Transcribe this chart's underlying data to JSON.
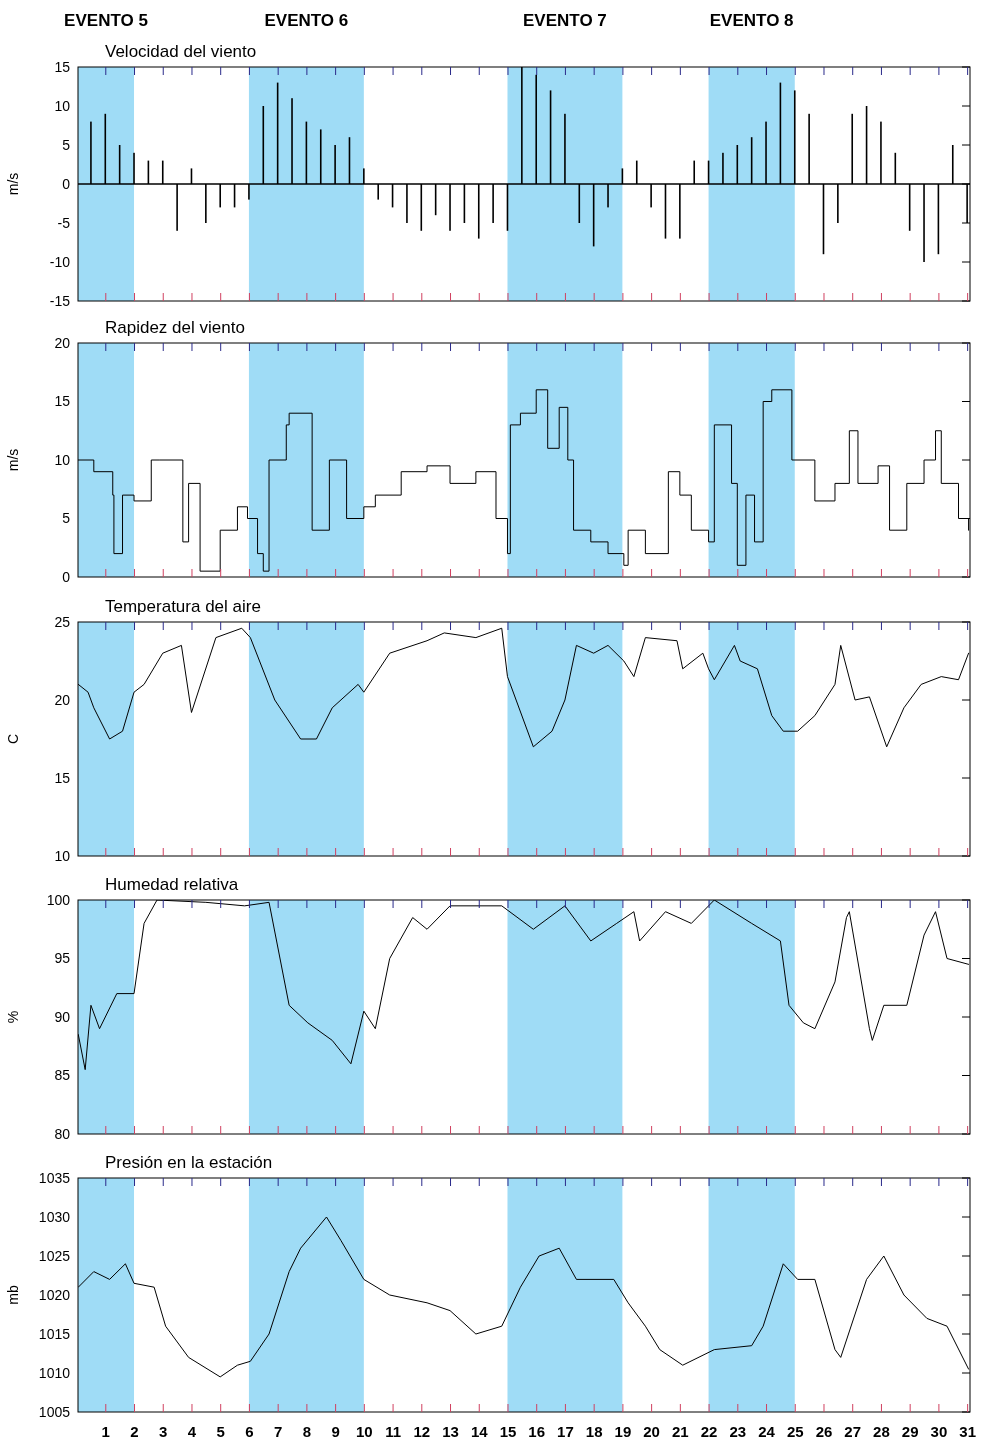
{
  "chart_data": [
    {
      "type": "bar",
      "title": "Velocidad del viento",
      "ylabel": "m/s",
      "xlim": [
        0.05,
        31.1
      ],
      "ylim": [
        -15,
        15
      ],
      "yticks": [
        -15,
        -10,
        -5,
        0,
        5,
        10,
        15
      ],
      "xticks": [
        1,
        2,
        3,
        4,
        5,
        6,
        7,
        8,
        9,
        10,
        11,
        12,
        13,
        14,
        15,
        16,
        17,
        18,
        19,
        20,
        21,
        22,
        23,
        24,
        25,
        26,
        27,
        28,
        29,
        30,
        31
      ],
      "tick_labels": "y",
      "grid": false,
      "bands": [
        {
          "axis": "x",
          "from": 0.05,
          "to": 2,
          "label": "EVENTO 5",
          "color": "#9fdcf6"
        },
        {
          "axis": "x",
          "from": 6,
          "to": 10,
          "label": "EVENTO 6",
          "color": "#9fdcf6"
        },
        {
          "axis": "x",
          "from": 15,
          "to": 19,
          "label": "EVENTO 7",
          "color": "#9fdcf6"
        },
        {
          "axis": "x",
          "from": 22,
          "to": 25,
          "label": "EVENTO 8",
          "color": "#9fdcf6"
        }
      ],
      "ref_lines": [
        {
          "axis": "y",
          "value": 0,
          "color": "#000000"
        }
      ],
      "x": [
        0.5,
        1,
        1.5,
        2,
        2.5,
        3,
        3.5,
        4,
        4.5,
        5,
        5.5,
        6,
        6.5,
        7,
        7.5,
        8,
        8.5,
        9,
        9.5,
        10,
        10.5,
        11,
        11.5,
        12,
        12.5,
        13,
        13.5,
        14,
        14.5,
        15,
        15.5,
        16,
        16.5,
        17,
        17.5,
        18,
        18.5,
        19,
        19.5,
        20,
        20.5,
        21,
        21.5,
        22,
        22.5,
        23,
        23.5,
        24,
        24.5,
        25,
        25.5,
        26,
        26.5,
        27,
        27.5,
        28,
        28.5,
        29,
        29.5,
        30,
        30.5,
        31
      ],
      "series": [
        {
          "color": "#000000",
          "values": [
            8,
            9,
            5,
            4,
            3,
            3,
            -6,
            2,
            -5,
            -3,
            -3,
            -2,
            10,
            13,
            11,
            8,
            7,
            5,
            6,
            2,
            -2,
            -3,
            -5,
            -6,
            -4,
            -6,
            -5,
            -7,
            -5,
            -6,
            15,
            14,
            12,
            9,
            -5,
            -8,
            -3,
            2,
            3,
            -3,
            -7,
            -7,
            3,
            3,
            4,
            5,
            6,
            8,
            13,
            12,
            9,
            -9,
            -5,
            9,
            10,
            8,
            4,
            -6,
            -10,
            -9,
            5,
            -5
          ]
        }
      ]
    },
    {
      "type": "step",
      "title": "Rapidez del viento",
      "ylabel": "m/s",
      "xlim": [
        0.05,
        31.1
      ],
      "ylim": [
        0,
        20
      ],
      "yticks": [
        0,
        5,
        10,
        15,
        20
      ],
      "xticks": [
        1,
        2,
        3,
        4,
        5,
        6,
        7,
        8,
        9,
        10,
        11,
        12,
        13,
        14,
        15,
        16,
        17,
        18,
        19,
        20,
        21,
        22,
        23,
        24,
        25,
        26,
        27,
        28,
        29,
        30,
        31
      ],
      "tick_labels": "y",
      "grid": false,
      "bands": [
        {
          "axis": "x",
          "from": 0.05,
          "to": 2,
          "color": "#9fdcf6"
        },
        {
          "axis": "x",
          "from": 6,
          "to": 10,
          "color": "#9fdcf6"
        },
        {
          "axis": "x",
          "from": 15,
          "to": 19,
          "color": "#9fdcf6"
        },
        {
          "axis": "x",
          "from": 22,
          "to": 25,
          "color": "#9fdcf6"
        }
      ],
      "series": [
        {
          "color": "#000000",
          "x": [
            0.06,
            0.6,
            1.26,
            1.3,
            1.6,
            2,
            2.6,
            2.9,
            3.7,
            3.9,
            4.3,
            5,
            5.6,
            5.95,
            6.3,
            6.5,
            6.7,
            7.3,
            7.4,
            8.2,
            8.8,
            9.4,
            10,
            10.4,
            11.3,
            12.2,
            13,
            13.9,
            14.6,
            15,
            15.1,
            15.45,
            16,
            16.4,
            16.8,
            17.1,
            17.3,
            17.9,
            18.5,
            19.05,
            19.2,
            19.8,
            20.6,
            21,
            21.4,
            22,
            22.2,
            22.8,
            23,
            23.3,
            23.6,
            23.9,
            24.2,
            24.9,
            25.7,
            26.4,
            26.9,
            27.2,
            27.9,
            28.3,
            28.9,
            29.5,
            29.9,
            30.1,
            30.7,
            31.05
          ],
          "values": [
            10,
            9,
            7,
            2,
            7,
            6.5,
            10,
            10,
            3,
            8,
            0.5,
            4,
            6,
            5,
            2,
            0.5,
            10,
            13,
            14,
            4,
            10,
            5,
            6,
            7,
            9,
            9.5,
            8,
            9,
            5,
            2,
            13,
            14,
            16,
            11,
            14.5,
            10,
            4,
            3,
            2,
            1,
            4,
            2,
            9,
            7,
            4,
            3,
            13,
            8,
            1,
            7,
            3,
            15,
            16,
            10,
            6.5,
            8,
            12.5,
            8,
            9.5,
            4,
            8,
            10,
            12.5,
            8,
            5,
            4
          ]
        }
      ]
    },
    {
      "type": "line",
      "title": "Temperatura del aire",
      "ylabel": "C",
      "xlim": [
        0.05,
        31.1
      ],
      "ylim": [
        10,
        25
      ],
      "yticks": [
        10,
        15,
        20,
        25
      ],
      "xticks": [
        1,
        2,
        3,
        4,
        5,
        6,
        7,
        8,
        9,
        10,
        11,
        12,
        13,
        14,
        15,
        16,
        17,
        18,
        19,
        20,
        21,
        22,
        23,
        24,
        25,
        26,
        27,
        28,
        29,
        30,
        31
      ],
      "tick_labels": "y",
      "grid": false,
      "marker": "none",
      "bands": [
        {
          "axis": "x",
          "from": 0.05,
          "to": 2,
          "color": "#9fdcf6"
        },
        {
          "axis": "x",
          "from": 6,
          "to": 10,
          "color": "#9fdcf6"
        },
        {
          "axis": "x",
          "from": 15,
          "to": 19,
          "color": "#9fdcf6"
        },
        {
          "axis": "x",
          "from": 22,
          "to": 25,
          "color": "#9fdcf6"
        }
      ],
      "series": [
        {
          "color": "#000000",
          "x": [
            0.06,
            0.4,
            0.6,
            1.15,
            1.6,
            2,
            2.35,
            3,
            3.65,
            4,
            4.85,
            5.75,
            6.05,
            6.9,
            7.8,
            8.35,
            8.9,
            9.8,
            10,
            10.9,
            12.2,
            12.8,
            13.9,
            14.8,
            15,
            15.9,
            16.55,
            17,
            17.4,
            18,
            18.5,
            19.05,
            19.4,
            19.8,
            20.9,
            21.1,
            21.8,
            22,
            22.2,
            22.9,
            23.1,
            23.7,
            24.2,
            24.6,
            25.1,
            25.7,
            26.4,
            26.6,
            27.1,
            27.6,
            28.2,
            28.8,
            29.4,
            30.1,
            30.7,
            31.05
          ],
          "values": [
            21,
            20.5,
            19.5,
            17.5,
            18,
            20.5,
            21,
            23,
            23.5,
            19.2,
            24,
            24.6,
            24,
            20,
            17.5,
            17.5,
            19.5,
            21,
            20.5,
            23,
            23.8,
            24.3,
            24,
            24.6,
            21.5,
            17,
            18,
            20,
            23.5,
            23,
            23.5,
            22.5,
            21.5,
            24,
            23.8,
            22,
            23,
            22,
            21.3,
            23.5,
            22.5,
            22,
            19,
            18,
            18,
            19,
            21,
            23.5,
            20,
            20.2,
            17,
            19.5,
            21,
            21.5,
            21.3,
            23
          ]
        }
      ]
    },
    {
      "type": "line",
      "title": "Humedad relativa",
      "ylabel": "%",
      "xlim": [
        0.05,
        31.1
      ],
      "ylim": [
        80,
        100
      ],
      "yticks": [
        80,
        85,
        90,
        95,
        100
      ],
      "xticks": [
        1,
        2,
        3,
        4,
        5,
        6,
        7,
        8,
        9,
        10,
        11,
        12,
        13,
        14,
        15,
        16,
        17,
        18,
        19,
        20,
        21,
        22,
        23,
        24,
        25,
        26,
        27,
        28,
        29,
        30,
        31
      ],
      "tick_labels": "y",
      "grid": false,
      "marker": "none",
      "bands": [
        {
          "axis": "x",
          "from": 0.05,
          "to": 2,
          "color": "#9fdcf6"
        },
        {
          "axis": "x",
          "from": 6,
          "to": 10,
          "color": "#9fdcf6"
        },
        {
          "axis": "x",
          "from": 15,
          "to": 19,
          "color": "#9fdcf6"
        },
        {
          "axis": "x",
          "from": 22,
          "to": 25,
          "color": "#9fdcf6"
        }
      ],
      "series": [
        {
          "color": "#000000",
          "x": [
            0.06,
            0.3,
            0.5,
            0.8,
            1.4,
            2,
            2.35,
            2.8,
            4.5,
            5.85,
            6.7,
            7.4,
            8.05,
            8.9,
            9.55,
            10,
            10.4,
            10.9,
            11.7,
            12.2,
            13,
            14.8,
            15.9,
            17,
            17.9,
            18.8,
            19.4,
            19.6,
            20.5,
            21.4,
            22.2,
            23.5,
            24.5,
            24.8,
            25.3,
            25.7,
            26.4,
            26.8,
            26.9,
            27.6,
            27.7,
            28.1,
            28.9,
            29.5,
            29.9,
            30.3,
            31.05
          ],
          "values": [
            88.5,
            85.5,
            91,
            89,
            92,
            92,
            98,
            100,
            99.8,
            99.5,
            99.8,
            91,
            89.5,
            88,
            86,
            90.5,
            89,
            95,
            98.5,
            97.5,
            99.5,
            99.5,
            97.5,
            99.5,
            96.5,
            98,
            99,
            96.5,
            99,
            98,
            100,
            98,
            96.5,
            91,
            89.5,
            89,
            93,
            98.5,
            99,
            89,
            88,
            91,
            91,
            97,
            99,
            95,
            94.5
          ]
        }
      ]
    },
    {
      "type": "line",
      "title": "Presión en la estación",
      "ylabel": "mb",
      "xlim": [
        0.05,
        31.1
      ],
      "ylim": [
        1005,
        1035
      ],
      "yticks": [
        1005,
        1010,
        1015,
        1020,
        1025,
        1030,
        1035
      ],
      "xticks": [
        1,
        2,
        3,
        4,
        5,
        6,
        7,
        8,
        9,
        10,
        11,
        12,
        13,
        14,
        15,
        16,
        17,
        18,
        19,
        20,
        21,
        22,
        23,
        24,
        25,
        26,
        27,
        28,
        29,
        30,
        31
      ],
      "grid": false,
      "marker": "none",
      "bands": [
        {
          "axis": "x",
          "from": 0.05,
          "to": 2,
          "color": "#9fdcf6"
        },
        {
          "axis": "x",
          "from": 6,
          "to": 10,
          "color": "#9fdcf6"
        },
        {
          "axis": "x",
          "from": 15,
          "to": 19,
          "color": "#9fdcf6"
        },
        {
          "axis": "x",
          "from": 22,
          "to": 25,
          "color": "#9fdcf6"
        }
      ],
      "series": [
        {
          "color": "#000000",
          "x": [
            0.06,
            0.6,
            1.15,
            1.7,
            2,
            2.7,
            3.1,
            3.9,
            5,
            5.6,
            6.05,
            6.7,
            7.4,
            7.8,
            8.7,
            9.2,
            10,
            10.9,
            12.2,
            13,
            13.9,
            14.8,
            15.45,
            16.1,
            16.8,
            17.4,
            18.7,
            19.2,
            19.8,
            20.3,
            21.1,
            22.2,
            23.5,
            23.9,
            24.6,
            25.1,
            25.7,
            26.4,
            26.6,
            27.5,
            28.1,
            28.8,
            29.6,
            30.3,
            31.05
          ],
          "values": [
            1021,
            1023,
            1022,
            1024,
            1021.5,
            1021,
            1016,
            1012,
            1009.5,
            1011,
            1011.5,
            1015,
            1023,
            1026,
            1030,
            1027,
            1022,
            1020,
            1019,
            1018,
            1015,
            1016,
            1021,
            1025,
            1026,
            1022,
            1022,
            1019,
            1016,
            1013,
            1011,
            1013,
            1013.5,
            1016,
            1024,
            1022,
            1022,
            1013,
            1012,
            1022,
            1025,
            1020,
            1017,
            1016,
            1010.5
          ]
        }
      ]
    }
  ]
}
